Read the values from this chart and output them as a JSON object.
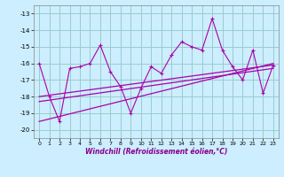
{
  "xlabel": "Windchill (Refroidissement éolien,°C)",
  "bg_color": "#cceeff",
  "grid_color": "#99cccc",
  "line_color": "#aa00aa",
  "x_data": [
    0,
    1,
    2,
    3,
    4,
    5,
    6,
    7,
    8,
    9,
    10,
    11,
    12,
    13,
    14,
    15,
    16,
    17,
    18,
    19,
    20,
    21,
    22,
    23
  ],
  "y_main": [
    -16.0,
    -18.0,
    -19.5,
    -16.3,
    -16.2,
    -16.0,
    -14.9,
    -16.5,
    -17.4,
    -19.0,
    -17.5,
    -16.2,
    -16.6,
    -15.5,
    -14.7,
    -15.0,
    -15.2,
    -13.3,
    -15.2,
    -16.2,
    -17.0,
    -15.2,
    -17.8,
    -16.1
  ],
  "reg_lines": [
    {
      "x0": 0,
      "y0": -18.0,
      "x1": 23,
      "y1": -16.1
    },
    {
      "x0": 0,
      "y0": -18.3,
      "x1": 23,
      "y1": -16.3
    },
    {
      "x0": 0,
      "y0": -19.5,
      "x1": 23,
      "y1": -16.0
    }
  ],
  "ylim": [
    -20.5,
    -12.5
  ],
  "yticks": [
    -20,
    -19,
    -18,
    -17,
    -16,
    -15,
    -14,
    -13
  ],
  "xlim": [
    -0.5,
    23.5
  ],
  "xticks": [
    0,
    1,
    2,
    3,
    4,
    5,
    6,
    7,
    8,
    9,
    10,
    11,
    12,
    13,
    14,
    15,
    16,
    17,
    18,
    19,
    20,
    21,
    22,
    23
  ]
}
